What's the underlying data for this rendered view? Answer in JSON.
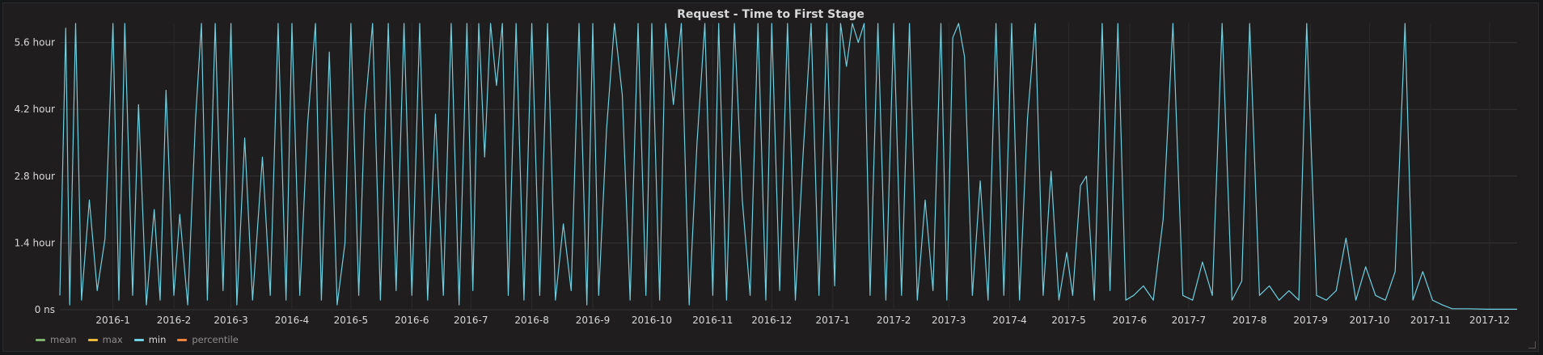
{
  "panel": {
    "title": "Request - Time to First Stage"
  },
  "chart_data": {
    "type": "line",
    "title": "Request - Time to First Stage",
    "xlabel": "",
    "ylabel": "",
    "y_unit": "hour",
    "ylim": [
      0,
      6.0
    ],
    "y_ticks": [
      {
        "value": 0,
        "label": "0 ns"
      },
      {
        "value": 1.4,
        "label": "1.4 hour"
      },
      {
        "value": 2.8,
        "label": "2.8 hour"
      },
      {
        "value": 4.2,
        "label": "4.2 hour"
      },
      {
        "value": 5.6,
        "label": "5.6 hour"
      }
    ],
    "x_ticks": [
      "2016-1",
      "2016-2",
      "2016-3",
      "2016-4",
      "2016-5",
      "2016-6",
      "2016-7",
      "2016-8",
      "2016-9",
      "2016-10",
      "2016-11",
      "2016-12",
      "2017-1",
      "2017-2",
      "2017-3",
      "2017-4",
      "2017-5",
      "2017-6",
      "2017-7",
      "2017-8",
      "2017-9",
      "2017-10",
      "2017-11",
      "2017-12"
    ],
    "xlim": [
      "2015-12-05",
      "2017-12-15"
    ],
    "grid": true,
    "legend_position": "bottom-left",
    "series": [
      {
        "name": "mean",
        "color": "#7eb26d",
        "values": []
      },
      {
        "name": "max",
        "color": "#eab839",
        "values": []
      },
      {
        "name": "min",
        "color": "#6ed0e0",
        "values": [
          [
            "2015-12-05",
            0.3
          ],
          [
            "2015-12-08",
            5.9
          ],
          [
            "2015-12-10",
            0.1
          ],
          [
            "2015-12-13",
            6.0
          ],
          [
            "2015-12-16",
            0.2
          ],
          [
            "2015-12-20",
            2.3
          ],
          [
            "2015-12-24",
            0.4
          ],
          [
            "2015-12-28",
            1.5
          ],
          [
            "2016-01-01",
            6.0
          ],
          [
            "2016-01-04",
            0.2
          ],
          [
            "2016-01-07",
            6.0
          ],
          [
            "2016-01-11",
            0.3
          ],
          [
            "2016-01-14",
            4.3
          ],
          [
            "2016-01-18",
            0.1
          ],
          [
            "2016-01-22",
            2.1
          ],
          [
            "2016-01-25",
            0.2
          ],
          [
            "2016-01-28",
            4.6
          ],
          [
            "2016-02-01",
            0.3
          ],
          [
            "2016-02-04",
            2.0
          ],
          [
            "2016-02-08",
            0.1
          ],
          [
            "2016-02-12",
            4.0
          ],
          [
            "2016-02-15",
            6.0
          ],
          [
            "2016-02-18",
            0.2
          ],
          [
            "2016-02-22",
            6.0
          ],
          [
            "2016-02-26",
            0.4
          ],
          [
            "2016-03-01",
            6.0
          ],
          [
            "2016-03-04",
            0.1
          ],
          [
            "2016-03-08",
            3.6
          ],
          [
            "2016-03-12",
            0.2
          ],
          [
            "2016-03-17",
            3.2
          ],
          [
            "2016-03-21",
            0.3
          ],
          [
            "2016-03-25",
            6.0
          ],
          [
            "2016-03-29",
            0.2
          ],
          [
            "2016-04-01",
            6.0
          ],
          [
            "2016-04-05",
            0.3
          ],
          [
            "2016-04-09",
            3.9
          ],
          [
            "2016-04-13",
            6.0
          ],
          [
            "2016-04-16",
            0.2
          ],
          [
            "2016-04-20",
            5.4
          ],
          [
            "2016-04-24",
            0.1
          ],
          [
            "2016-04-28",
            1.4
          ],
          [
            "2016-05-01",
            6.0
          ],
          [
            "2016-05-05",
            0.3
          ],
          [
            "2016-05-08",
            4.1
          ],
          [
            "2016-05-12",
            6.0
          ],
          [
            "2016-05-16",
            0.2
          ],
          [
            "2016-05-20",
            6.0
          ],
          [
            "2016-05-24",
            0.4
          ],
          [
            "2016-05-28",
            6.0
          ],
          [
            "2016-06-01",
            0.3
          ],
          [
            "2016-06-05",
            6.0
          ],
          [
            "2016-06-09",
            0.2
          ],
          [
            "2016-06-13",
            4.1
          ],
          [
            "2016-06-17",
            0.3
          ],
          [
            "2016-06-21",
            6.0
          ],
          [
            "2016-06-25",
            0.1
          ],
          [
            "2016-06-29",
            6.0
          ],
          [
            "2016-07-02",
            0.4
          ],
          [
            "2016-07-05",
            6.0
          ],
          [
            "2016-07-08",
            3.2
          ],
          [
            "2016-07-11",
            6.0
          ],
          [
            "2016-07-14",
            4.7
          ],
          [
            "2016-07-17",
            6.0
          ],
          [
            "2016-07-20",
            0.3
          ],
          [
            "2016-07-24",
            6.0
          ],
          [
            "2016-07-28",
            0.2
          ],
          [
            "2016-08-01",
            6.0
          ],
          [
            "2016-08-05",
            0.3
          ],
          [
            "2016-08-09",
            6.0
          ],
          [
            "2016-08-13",
            0.2
          ],
          [
            "2016-08-17",
            1.8
          ],
          [
            "2016-08-21",
            0.4
          ],
          [
            "2016-08-25",
            6.0
          ],
          [
            "2016-08-29",
            0.1
          ],
          [
            "2016-09-01",
            6.0
          ],
          [
            "2016-09-04",
            0.3
          ],
          [
            "2016-09-08",
            3.8
          ],
          [
            "2016-09-12",
            6.0
          ],
          [
            "2016-09-16",
            4.5
          ],
          [
            "2016-09-20",
            0.2
          ],
          [
            "2016-09-24",
            6.0
          ],
          [
            "2016-09-28",
            0.3
          ],
          [
            "2016-10-01",
            6.0
          ],
          [
            "2016-10-05",
            0.2
          ],
          [
            "2016-10-08",
            6.0
          ],
          [
            "2016-10-12",
            4.3
          ],
          [
            "2016-10-16",
            6.0
          ],
          [
            "2016-10-20",
            0.1
          ],
          [
            "2016-10-24",
            3.5
          ],
          [
            "2016-10-28",
            6.0
          ],
          [
            "2016-11-01",
            0.3
          ],
          [
            "2016-11-04",
            6.0
          ],
          [
            "2016-11-08",
            0.2
          ],
          [
            "2016-11-12",
            6.0
          ],
          [
            "2016-11-16",
            2.3
          ],
          [
            "2016-11-20",
            0.3
          ],
          [
            "2016-11-24",
            6.0
          ],
          [
            "2016-11-28",
            0.2
          ],
          [
            "2016-12-01",
            6.0
          ],
          [
            "2016-12-05",
            0.4
          ],
          [
            "2016-12-09",
            6.0
          ],
          [
            "2016-12-13",
            0.2
          ],
          [
            "2016-12-17",
            3.3
          ],
          [
            "2016-12-21",
            6.0
          ],
          [
            "2016-12-25",
            0.3
          ],
          [
            "2016-12-29",
            6.0
          ],
          [
            "2017-01-02",
            0.5
          ],
          [
            "2017-01-05",
            6.0
          ],
          [
            "2017-01-08",
            5.1
          ],
          [
            "2017-01-11",
            6.0
          ],
          [
            "2017-01-14",
            5.6
          ],
          [
            "2017-01-17",
            6.0
          ],
          [
            "2017-01-20",
            0.3
          ],
          [
            "2017-01-24",
            6.0
          ],
          [
            "2017-01-28",
            0.2
          ],
          [
            "2017-02-01",
            6.0
          ],
          [
            "2017-02-05",
            0.3
          ],
          [
            "2017-02-09",
            6.0
          ],
          [
            "2017-02-13",
            0.2
          ],
          [
            "2017-02-17",
            2.3
          ],
          [
            "2017-02-21",
            0.4
          ],
          [
            "2017-02-25",
            6.0
          ],
          [
            "2017-02-28",
            0.2
          ],
          [
            "2017-03-03",
            5.7
          ],
          [
            "2017-03-06",
            6.0
          ],
          [
            "2017-03-09",
            5.3
          ],
          [
            "2017-03-13",
            0.3
          ],
          [
            "2017-03-17",
            2.7
          ],
          [
            "2017-03-21",
            0.2
          ],
          [
            "2017-03-25",
            6.0
          ],
          [
            "2017-03-29",
            0.3
          ],
          [
            "2017-04-02",
            6.0
          ],
          [
            "2017-04-06",
            0.2
          ],
          [
            "2017-04-10",
            4.0
          ],
          [
            "2017-04-14",
            6.0
          ],
          [
            "2017-04-18",
            0.3
          ],
          [
            "2017-04-22",
            2.9
          ],
          [
            "2017-04-26",
            0.2
          ],
          [
            "2017-04-30",
            1.2
          ],
          [
            "2017-05-03",
            0.3
          ],
          [
            "2017-05-07",
            2.6
          ],
          [
            "2017-05-10",
            2.8
          ],
          [
            "2017-05-14",
            0.2
          ],
          [
            "2017-05-18",
            6.0
          ],
          [
            "2017-05-22",
            0.4
          ],
          [
            "2017-05-26",
            6.0
          ],
          [
            "2017-05-30",
            0.2
          ],
          [
            "2017-06-03",
            0.3
          ],
          [
            "2017-06-08",
            0.5
          ],
          [
            "2017-06-13",
            0.2
          ],
          [
            "2017-06-18",
            1.9
          ],
          [
            "2017-06-23",
            6.0
          ],
          [
            "2017-06-28",
            0.3
          ],
          [
            "2017-07-03",
            0.2
          ],
          [
            "2017-07-08",
            1.0
          ],
          [
            "2017-07-13",
            0.3
          ],
          [
            "2017-07-18",
            6.0
          ],
          [
            "2017-07-23",
            0.2
          ],
          [
            "2017-07-28",
            0.6
          ],
          [
            "2017-08-01",
            6.0
          ],
          [
            "2017-08-06",
            0.3
          ],
          [
            "2017-08-11",
            0.5
          ],
          [
            "2017-08-16",
            0.2
          ],
          [
            "2017-08-21",
            0.4
          ],
          [
            "2017-08-26",
            0.2
          ],
          [
            "2017-08-30",
            6.0
          ],
          [
            "2017-09-04",
            0.3
          ],
          [
            "2017-09-09",
            0.2
          ],
          [
            "2017-09-14",
            0.4
          ],
          [
            "2017-09-19",
            1.5
          ],
          [
            "2017-09-24",
            0.2
          ],
          [
            "2017-09-29",
            0.9
          ],
          [
            "2017-10-04",
            0.3
          ],
          [
            "2017-10-09",
            0.2
          ],
          [
            "2017-10-14",
            0.8
          ],
          [
            "2017-10-19",
            6.0
          ],
          [
            "2017-10-23",
            0.2
          ],
          [
            "2017-10-28",
            0.8
          ],
          [
            "2017-11-02",
            0.2
          ],
          [
            "2017-11-07",
            0.1
          ],
          [
            "2017-11-12",
            0.02
          ],
          [
            "2017-11-20",
            0.02
          ],
          [
            "2017-11-30",
            0.01
          ],
          [
            "2017-12-10",
            0.01
          ],
          [
            "2017-12-15",
            0.01
          ]
        ]
      },
      {
        "name": "percentile",
        "color": "#ef843c",
        "values": []
      }
    ]
  },
  "legend": [
    {
      "name": "mean",
      "color": "#7eb26d"
    },
    {
      "name": "max",
      "color": "#eab839"
    },
    {
      "name": "min",
      "color": "#6ed0e0"
    },
    {
      "name": "percentile",
      "color": "#ef843c"
    }
  ]
}
